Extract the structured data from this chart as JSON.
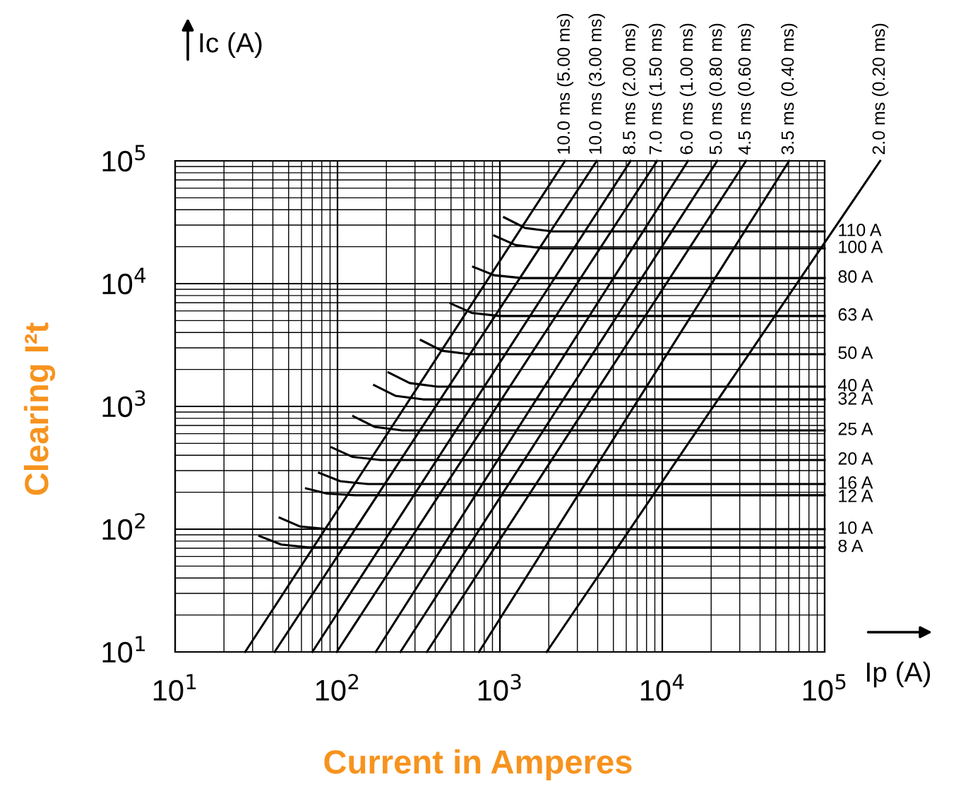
{
  "chart_data": {
    "type": "line",
    "xlabel": "Current in Amperes",
    "ylabel": "Clearing I²t",
    "annotations": [
      "Ic (A)",
      "Ip (A)"
    ],
    "log": "xy",
    "xlim": [
      10,
      100000
    ],
    "ylim": [
      10,
      100000
    ],
    "xticks": [
      {
        "value": 10,
        "label": "10$^{1}$"
      },
      {
        "value": 100,
        "label": "10$^{2}$"
      },
      {
        "value": 1000,
        "label": "10$^{3}$"
      },
      {
        "value": 10000,
        "label": "10$^{4}$"
      },
      {
        "value": 100000,
        "label": "10$^{5}$"
      }
    ],
    "yticks": [
      {
        "value": 10,
        "label": "10$^{1}$"
      },
      {
        "value": 100,
        "label": "10$^{2}$"
      },
      {
        "value": 1000,
        "label": "10$^{3}$"
      },
      {
        "value": 10000,
        "label": "10$^{4}$"
      },
      {
        "value": 100000,
        "label": "10$^{5}$"
      }
    ],
    "grid": true,
    "legend": false,
    "marker": "none",
    "line_style": "solid",
    "series": [
      {
        "name": "10.0 ms (5.00 ms)",
        "color": "#000000",
        "x": [
          27,
          2520
        ],
        "values": [
          10,
          100000
        ]
      },
      {
        "name": "10.0 ms (3.00 ms)",
        "color": "#000000",
        "x": [
          41,
          3950
        ],
        "values": [
          10,
          100000
        ]
      },
      {
        "name": "8.5 ms (2.00 ms)",
        "color": "#000000",
        "x": [
          70,
          6380
        ],
        "values": [
          10,
          100000
        ]
      },
      {
        "name": "7.0 ms (1.50 ms)",
        "color": "#000000",
        "x": [
          99,
          9290
        ],
        "values": [
          10,
          100000
        ]
      },
      {
        "name": "6.0 ms (1.00 ms)",
        "color": "#000000",
        "x": [
          172,
          14400
        ],
        "values": [
          10,
          100000
        ]
      },
      {
        "name": "5.0 ms (0.80 ms)",
        "color": "#000000",
        "x": [
          244,
          21800
        ],
        "values": [
          10,
          100000
        ]
      },
      {
        "name": "4.5 ms (0.60 ms)",
        "color": "#000000",
        "x": [
          355,
          32800
        ],
        "values": [
          10,
          100000
        ]
      },
      {
        "name": "3.5 ms (0.40 ms)",
        "color": "#000000",
        "x": [
          743,
          60400
        ],
        "values": [
          10,
          100000
        ]
      },
      {
        "name": "2.0 ms (0.20 ms)",
        "color": "#000000",
        "x": [
          1940,
          100000
        ],
        "values": [
          10,
          21600
        ]
      },
      {
        "name": "110 A",
        "color": "#000000",
        "x": [
          1060,
          1430,
          2120,
          100000
        ],
        "values": [
          34700,
          28400,
          26600,
          26600
        ]
      },
      {
        "name": "100 A",
        "color": "#000000",
        "x": [
          923,
          1250,
          1850,
          100000
        ],
        "values": [
          24600,
          20600,
          19400,
          19400
        ]
      },
      {
        "name": "80 A",
        "color": "#000000",
        "x": [
          684,
          923,
          1370,
          100000
        ],
        "values": [
          13700,
          11700,
          11100,
          11100
        ]
      },
      {
        "name": "63 A",
        "color": "#000000",
        "x": [
          497,
          671,
          994,
          100000
        ],
        "values": [
          6900,
          5780,
          5450,
          5450
        ]
      },
      {
        "name": "50 A",
        "color": "#000000",
        "x": [
          326,
          440,
          652,
          100000
        ],
        "values": [
          3470,
          2840,
          2660,
          2660
        ]
      },
      {
        "name": "40 A",
        "color": "#000000",
        "x": [
          206,
          278,
          412,
          100000
        ],
        "values": [
          1890,
          1550,
          1450,
          1450
        ]
      },
      {
        "name": "32 A",
        "color": "#000000",
        "x": [
          168,
          227,
          336,
          100000
        ],
        "values": [
          1490,
          1220,
          1140,
          1140
        ]
      },
      {
        "name": "25 A",
        "color": "#000000",
        "x": [
          125,
          169,
          250,
          100000
        ],
        "values": [
          832,
          682,
          638,
          638
        ]
      },
      {
        "name": "20 A",
        "color": "#000000",
        "x": [
          92,
          124,
          184,
          100000
        ],
        "values": [
          464,
          388,
          366,
          366
        ]
      },
      {
        "name": "16 A",
        "color": "#000000",
        "x": [
          77,
          104,
          154,
          100000
        ],
        "values": [
          288,
          246,
          233,
          233
        ]
      },
      {
        "name": "12 A",
        "color": "#000000",
        "x": [
          64,
          86,
          128,
          100000
        ],
        "values": [
          215,
          195,
          189,
          189
        ]
      },
      {
        "name": "10 A",
        "color": "#000000",
        "x": [
          44,
          59,
          88,
          100000
        ],
        "values": [
          124,
          105,
          100,
          100
        ]
      },
      {
        "name": "8 A",
        "color": "#000000",
        "x": [
          33,
          45,
          66,
          100000
        ],
        "values": [
          88,
          75,
          71,
          71
        ]
      }
    ]
  }
}
